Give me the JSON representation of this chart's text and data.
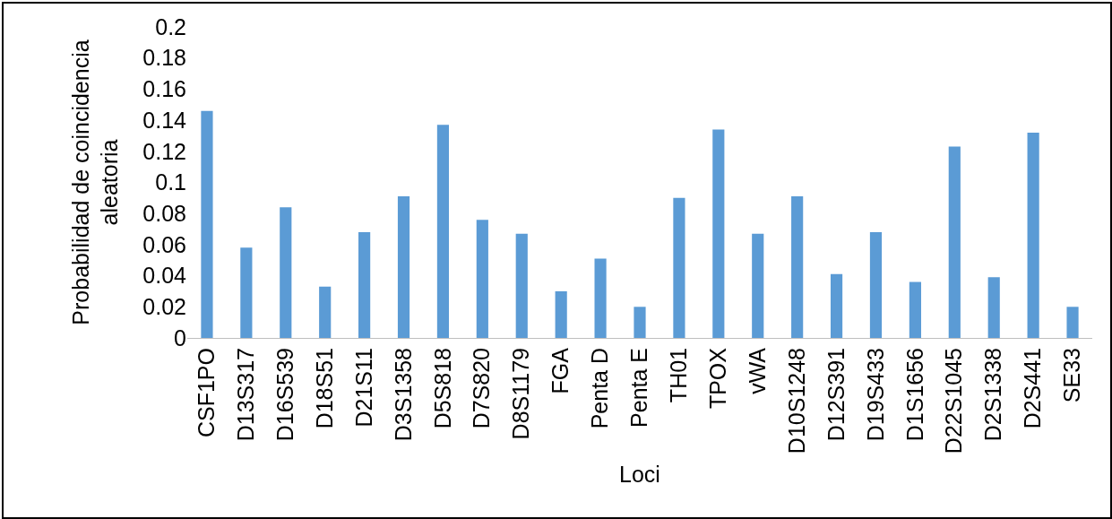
{
  "chart_data": {
    "type": "bar",
    "xlabel": "Loci",
    "ylabel": "Probabilidad de coincidencia aleatoria",
    "categories": [
      "CSF1PO",
      "D13S317",
      "D16S539",
      "D18S51",
      "D21S11",
      "D3S1358",
      "D5S818",
      "D7S820",
      "D8S1179",
      "FGA",
      "Penta D",
      "Penta E",
      "TH01",
      "TPOX",
      "vWA",
      "D10S1248",
      "D12S391",
      "D19S433",
      "D1S1656",
      "D22S1045",
      "D2S1338",
      "D2S441",
      "SE33"
    ],
    "values": [
      0.146,
      0.058,
      0.084,
      0.033,
      0.068,
      0.091,
      0.137,
      0.076,
      0.067,
      0.03,
      0.051,
      0.02,
      0.09,
      0.134,
      0.067,
      0.091,
      0.041,
      0.068,
      0.036,
      0.123,
      0.039,
      0.132,
      0.02
    ],
    "color": "#5b9bd5",
    "ylim": [
      0,
      0.2
    ],
    "yticks": [
      0,
      0.02,
      0.04,
      0.06,
      0.08,
      0.1,
      0.12,
      0.14,
      0.16,
      0.18,
      0.2
    ],
    "grid": false,
    "legend": false
  }
}
